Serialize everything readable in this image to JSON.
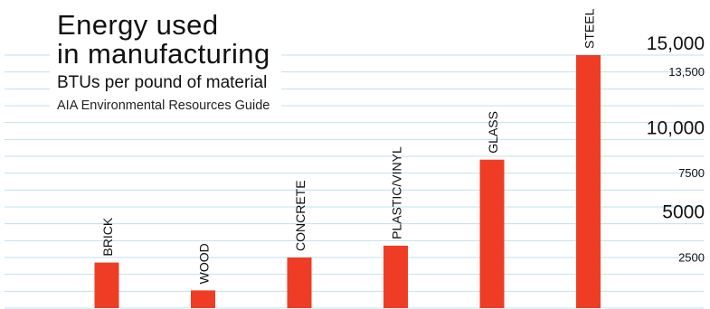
{
  "chart_data": {
    "type": "bar",
    "title": "Energy used\nin manufacturing",
    "subtitle": "BTUs per pound of material",
    "source": "AIA Environmental Resources Guide",
    "categories": [
      "BRICK",
      "WOOD",
      "CONCRETE",
      "PLASTIC/VINYL",
      "GLASS",
      "STEEL"
    ],
    "values": [
      2700,
      1050,
      3000,
      3700,
      8800,
      15000
    ],
    "ylim": [
      0,
      15000
    ],
    "yticks": [
      {
        "value": 2500,
        "label": "2500",
        "major": false
      },
      {
        "value": 5000,
        "label": "5000",
        "major": true
      },
      {
        "value": 7500,
        "label": "7500",
        "major": false
      },
      {
        "value": 10000,
        "label": "10,000",
        "major": true
      },
      {
        "value": 13500,
        "label": "13,500",
        "major": false
      },
      {
        "value": 15000,
        "label": "15,000",
        "major": true
      }
    ],
    "grid": true,
    "colors": {
      "bar": "#ee3d24",
      "grid": "#bfe0ef",
      "text": "#111111"
    }
  }
}
